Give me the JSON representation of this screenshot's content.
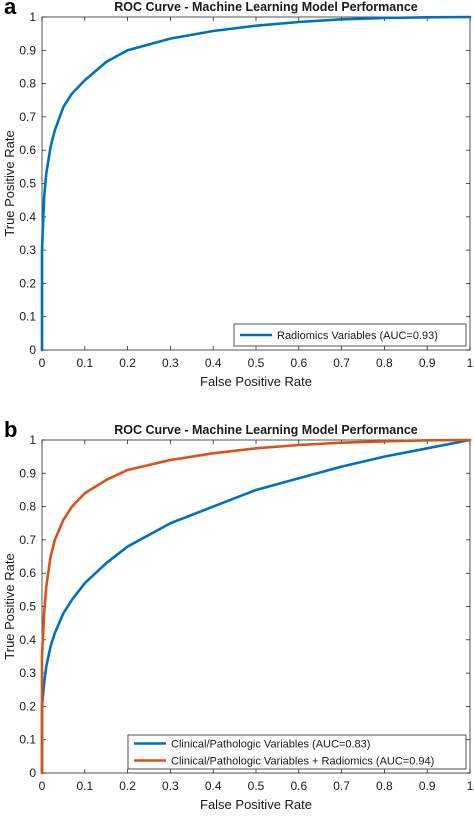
{
  "chart_data": [
    {
      "panel_letter": "a",
      "type": "line",
      "title": "ROC Curve - Machine Learning Model Performance",
      "xlabel": "False Positive Rate",
      "ylabel": "True Positive Rate",
      "xlim": [
        0,
        1
      ],
      "ylim": [
        0,
        1
      ],
      "xticks": [
        "0",
        "0.1",
        "0.2",
        "0.3",
        "0.4",
        "0.5",
        "0.6",
        "0.7",
        "0.8",
        "0.9",
        "1"
      ],
      "yticks": [
        "0",
        "0.1",
        "0.2",
        "0.3",
        "0.4",
        "0.5",
        "0.6",
        "0.7",
        "0.8",
        "0.9",
        "1"
      ],
      "grid": false,
      "legend_position": "bottom-right",
      "series": [
        {
          "name": "Radiomics Variables (AUC=0.93)",
          "color": "#0072BD",
          "x": [
            0,
            0,
            0.005,
            0.01,
            0.02,
            0.03,
            0.05,
            0.07,
            0.1,
            0.15,
            0.2,
            0.3,
            0.4,
            0.5,
            0.6,
            0.7,
            0.8,
            0.9,
            1
          ],
          "y": [
            0,
            0.3,
            0.46,
            0.53,
            0.61,
            0.66,
            0.73,
            0.77,
            0.81,
            0.865,
            0.9,
            0.935,
            0.958,
            0.974,
            0.985,
            0.993,
            0.997,
            0.999,
            1
          ]
        }
      ]
    },
    {
      "panel_letter": "b",
      "type": "line",
      "title": "ROC Curve - Machine Learning Model Performance",
      "xlabel": "False Positive Rate",
      "ylabel": "True Positive Rate",
      "xlim": [
        0,
        1
      ],
      "ylim": [
        0,
        1
      ],
      "xticks": [
        "0",
        "0.1",
        "0.2",
        "0.3",
        "0.4",
        "0.5",
        "0.6",
        "0.7",
        "0.8",
        "0.9",
        "1"
      ],
      "yticks": [
        "0",
        "0.1",
        "0.2",
        "0.3",
        "0.4",
        "0.5",
        "0.6",
        "0.7",
        "0.8",
        "0.9",
        "1"
      ],
      "grid": false,
      "legend_position": "bottom-right",
      "series": [
        {
          "name": "Clinical/Pathologic Variables (AUC=0.83)",
          "color": "#0072BD",
          "x": [
            0,
            0,
            0.005,
            0.01,
            0.02,
            0.03,
            0.05,
            0.07,
            0.1,
            0.15,
            0.2,
            0.3,
            0.4,
            0.5,
            0.6,
            0.7,
            0.8,
            0.9,
            1
          ],
          "y": [
            0,
            0.2,
            0.27,
            0.32,
            0.38,
            0.42,
            0.48,
            0.52,
            0.57,
            0.63,
            0.68,
            0.75,
            0.8,
            0.85,
            0.885,
            0.92,
            0.95,
            0.975,
            1
          ]
        },
        {
          "name": "Clinical/Pathologic Variables + Radiomics (AUC=0.94)",
          "color": "#D95319",
          "x": [
            0,
            0,
            0.005,
            0.01,
            0.02,
            0.03,
            0.05,
            0.07,
            0.1,
            0.15,
            0.2,
            0.3,
            0.4,
            0.5,
            0.6,
            0.7,
            0.8,
            0.9,
            1
          ],
          "y": [
            0,
            0.35,
            0.48,
            0.56,
            0.65,
            0.7,
            0.76,
            0.8,
            0.84,
            0.88,
            0.91,
            0.94,
            0.96,
            0.975,
            0.985,
            0.992,
            0.996,
            0.999,
            1
          ]
        }
      ]
    }
  ]
}
